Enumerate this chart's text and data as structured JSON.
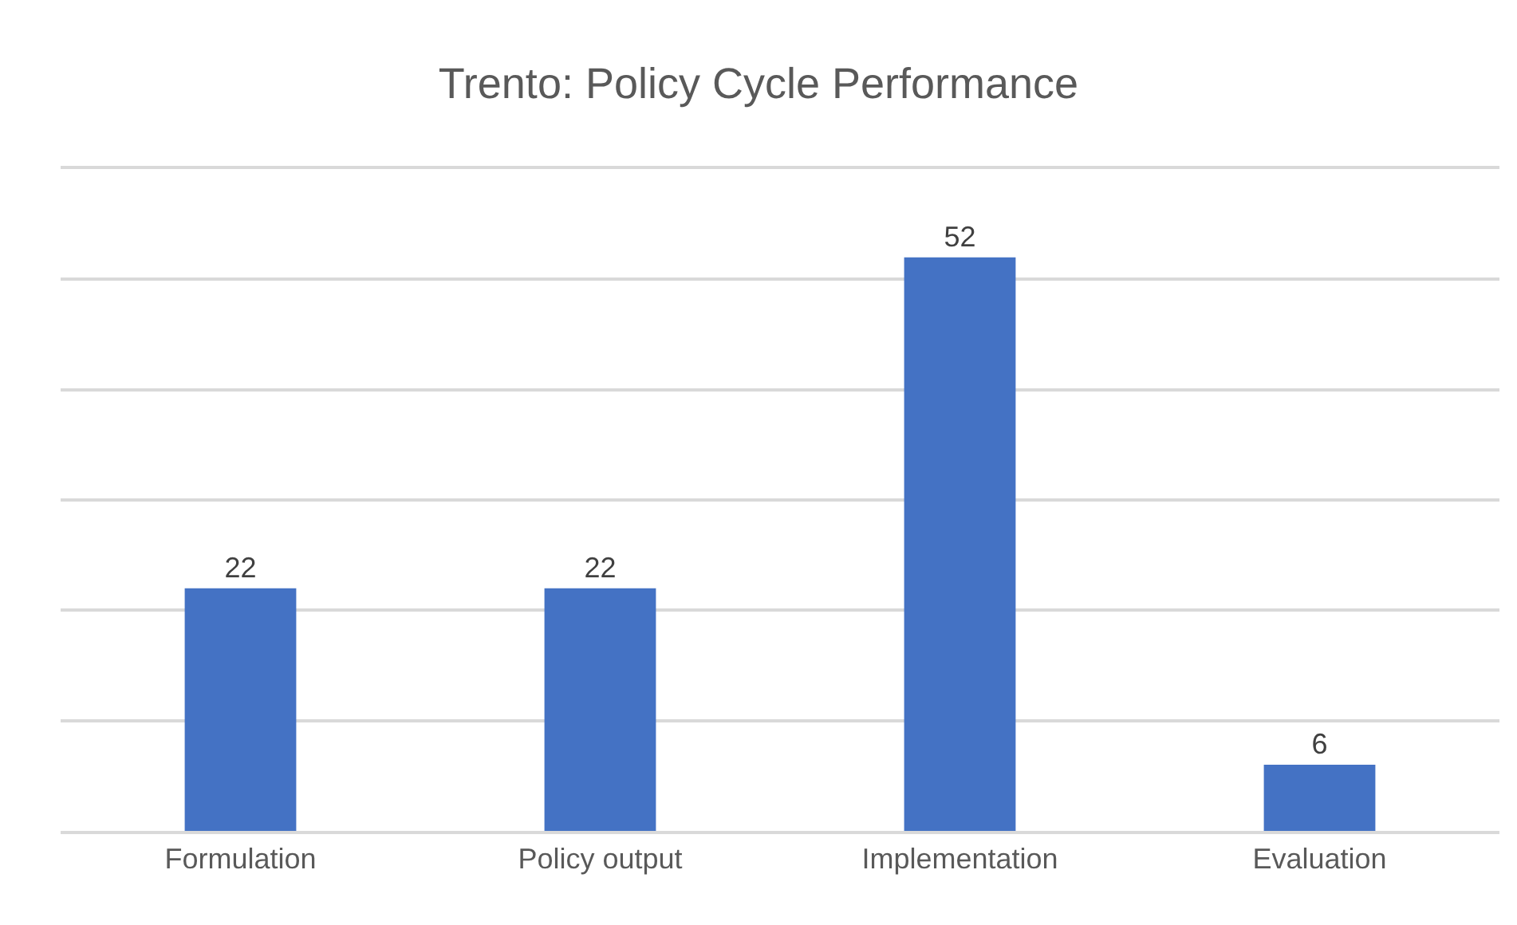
{
  "chart_data": {
    "type": "bar",
    "title": "Trento: Policy Cycle Performance",
    "categories": [
      "Formulation",
      "Policy output",
      "Implementation",
      "Evaluation"
    ],
    "values": [
      22,
      22,
      52,
      6
    ],
    "color": "#4472c4",
    "ylim": [
      0,
      60
    ],
    "yticks": [
      {
        "value": 0,
        "label": null
      },
      {
        "value": 10,
        "label": null
      },
      {
        "value": 20,
        "label": null
      },
      {
        "value": 30,
        "label": null
      },
      {
        "value": 40,
        "label": null
      },
      {
        "value": 50,
        "label": null
      },
      {
        "value": 60,
        "label": null
      }
    ],
    "grid": "y",
    "tick_labels": "x",
    "data_labels": true
  }
}
